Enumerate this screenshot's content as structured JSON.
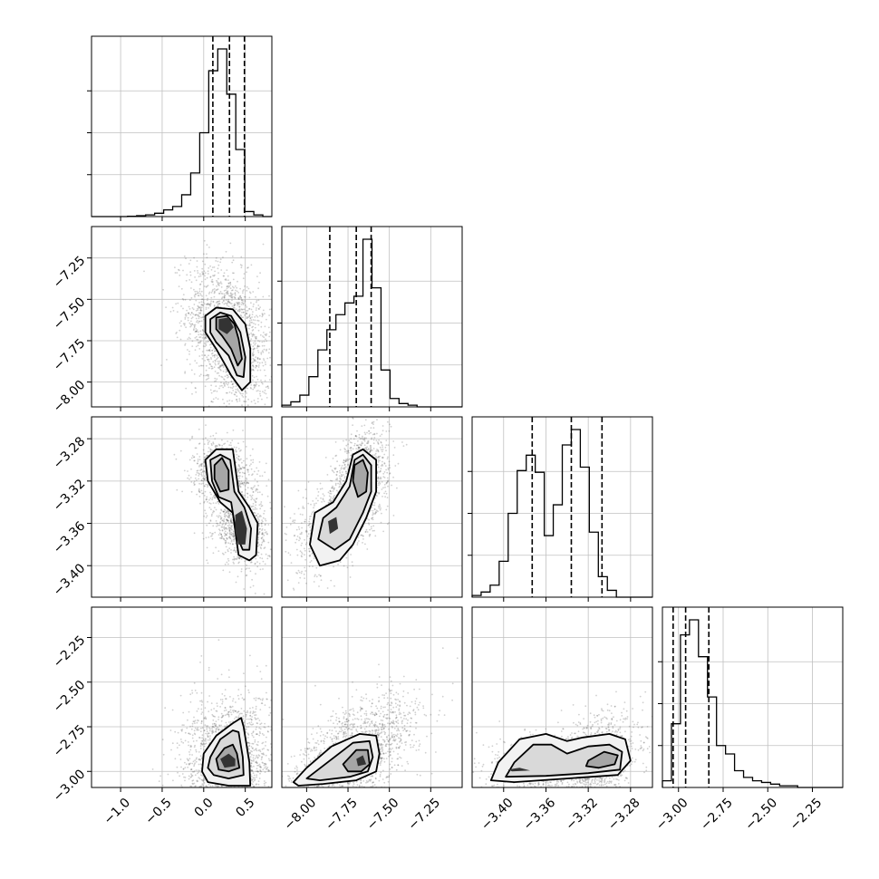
{
  "chart_data": {
    "type": "corner",
    "colors": {
      "axes": "#000000",
      "grid": "#c0c0c0",
      "points": "#555555",
      "contour": "#000000"
    },
    "parameters": [
      {
        "tick_values": [
          -1.0,
          -0.5,
          0.0,
          0.5
        ],
        "tick_labels": [
          "−1.0",
          "−0.5",
          "0.0",
          "0.5"
        ],
        "range": [
          -1.35,
          0.82
        ],
        "quantiles": [
          0.11,
          0.31,
          0.49
        ],
        "center": 0.31,
        "hist": [
          0,
          0,
          0,
          0,
          0.002,
          0.005,
          0.01,
          0.02,
          0.04,
          0.06,
          0.13,
          0.26,
          0.5,
          0.87,
          1.0,
          0.73,
          0.4,
          0.03,
          0.01,
          0
        ]
      },
      {
        "tick_values": [
          -8.0,
          -7.75,
          -7.5,
          -7.25
        ],
        "tick_labels": [
          "−8.00",
          "−7.75",
          "−7.50",
          "−7.25"
        ],
        "range": [
          -8.15,
          -7.06
        ],
        "quantiles": [
          -7.86,
          -7.7,
          -7.61
        ],
        "center": -7.66,
        "hist": [
          0.01,
          0.03,
          0.07,
          0.18,
          0.34,
          0.46,
          0.55,
          0.62,
          0.66,
          1.0,
          0.71,
          0.22,
          0.05,
          0.02,
          0.01,
          0,
          0,
          0,
          0,
          0
        ]
      },
      {
        "tick_values": [
          -3.4,
          -3.36,
          -3.32,
          -3.28
        ],
        "tick_labels": [
          "−3.40",
          "−3.36",
          "−3.32",
          "−3.28"
        ],
        "range": [
          -3.4298,
          -3.2593
        ],
        "quantiles": [
          -3.373,
          -3.336,
          -3.307
        ],
        "center": -3.34,
        "hist": [
          0.01,
          0.03,
          0.07,
          0.21,
          0.49,
          0.74,
          0.83,
          0.73,
          0.36,
          0.54,
          0.89,
          0.98,
          0.76,
          0.38,
          0.12,
          0.04,
          0,
          0,
          0,
          0
        ]
      },
      {
        "tick_values": [
          -3.0,
          -2.75,
          -2.5,
          -2.25
        ],
        "tick_labels": [
          "−3.00",
          "−2.75",
          "−2.50",
          "−2.25"
        ],
        "range": [
          -3.09,
          -2.08
        ],
        "quantiles": [
          -3.03,
          -2.96,
          -2.83
        ],
        "center": -2.94,
        "hist": [
          0.04,
          0.38,
          0.91,
          1.0,
          0.78,
          0.54,
          0.25,
          0.2,
          0.1,
          0.06,
          0.04,
          0.03,
          0.02,
          0.01,
          0.01,
          0,
          0,
          0,
          0,
          0
        ]
      }
    ],
    "pairs": [
      {
        "row": 1,
        "col": 0,
        "clusters": [
          {
            "w": 1.0,
            "m": [
              0.3,
              -7.72
            ],
            "s": [
              0.18,
              0.15
            ],
            "r": -0.35
          }
        ],
        "contours": [
          [
            [
              0.02,
              -7.6
            ],
            [
              0.15,
              -7.55
            ],
            [
              0.35,
              -7.56
            ],
            [
              0.5,
              -7.65
            ],
            [
              0.56,
              -7.8
            ],
            [
              0.56,
              -8.0
            ],
            [
              0.46,
              -8.05
            ],
            [
              0.33,
              -7.96
            ],
            [
              0.15,
              -7.8
            ],
            [
              0.02,
              -7.7
            ]
          ],
          [
            [
              0.08,
              -7.62
            ],
            [
              0.2,
              -7.58
            ],
            [
              0.33,
              -7.6
            ],
            [
              0.44,
              -7.7
            ],
            [
              0.5,
              -7.85
            ],
            [
              0.48,
              -7.97
            ],
            [
              0.4,
              -7.96
            ],
            [
              0.3,
              -7.84
            ],
            [
              0.15,
              -7.76
            ],
            [
              0.08,
              -7.7
            ]
          ],
          [
            [
              0.15,
              -7.61
            ],
            [
              0.28,
              -7.6
            ],
            [
              0.37,
              -7.65
            ],
            [
              0.42,
              -7.74
            ],
            [
              0.46,
              -7.86
            ],
            [
              0.41,
              -7.9
            ],
            [
              0.33,
              -7.8
            ],
            [
              0.22,
              -7.72
            ],
            [
              0.15,
              -7.68
            ]
          ],
          [
            [
              0.18,
              -7.62
            ],
            [
              0.3,
              -7.61
            ],
            [
              0.36,
              -7.67
            ],
            [
              0.28,
              -7.71
            ],
            [
              0.18,
              -7.68
            ]
          ]
        ]
      },
      {
        "row": 2,
        "col": 0,
        "clusters": [
          {
            "w": 0.5,
            "m": [
              0.23,
              -3.312
            ],
            "s": [
              0.13,
              0.011
            ],
            "r": -0.2
          },
          {
            "w": 0.5,
            "m": [
              0.45,
              -3.365
            ],
            "s": [
              0.12,
              0.012
            ],
            "r": -0.2
          }
        ],
        "contours": [
          [
            [
              0.02,
              -3.3
            ],
            [
              0.15,
              -3.29
            ],
            [
              0.35,
              -3.29
            ],
            [
              0.42,
              -3.33
            ],
            [
              0.55,
              -3.345
            ],
            [
              0.65,
              -3.36
            ],
            [
              0.63,
              -3.39
            ],
            [
              0.55,
              -3.395
            ],
            [
              0.42,
              -3.39
            ],
            [
              0.35,
              -3.35
            ],
            [
              0.2,
              -3.34
            ],
            [
              0.05,
              -3.32
            ]
          ],
          [
            [
              0.08,
              -3.3
            ],
            [
              0.2,
              -3.295
            ],
            [
              0.32,
              -3.3
            ],
            [
              0.37,
              -3.33
            ],
            [
              0.49,
              -3.345
            ],
            [
              0.57,
              -3.365
            ],
            [
              0.55,
              -3.385
            ],
            [
              0.47,
              -3.385
            ],
            [
              0.39,
              -3.37
            ],
            [
              0.33,
              -3.34
            ],
            [
              0.18,
              -3.335
            ],
            [
              0.1,
              -3.32
            ]
          ],
          [
            [
              0.13,
              -3.305
            ],
            [
              0.22,
              -3.298
            ],
            [
              0.3,
              -3.31
            ],
            [
              0.3,
              -3.328
            ],
            [
              0.2,
              -3.33
            ],
            [
              0.13,
              -3.318
            ]
          ],
          [
            [
              0.38,
              -3.352
            ],
            [
              0.46,
              -3.348
            ],
            [
              0.52,
              -3.365
            ],
            [
              0.5,
              -3.38
            ],
            [
              0.42,
              -3.38
            ],
            [
              0.38,
              -3.368
            ]
          ]
        ]
      },
      {
        "row": 2,
        "col": 1,
        "clusters": [
          {
            "w": 0.5,
            "m": [
              -7.67,
              -3.315
            ],
            "s": [
              0.06,
              0.016
            ],
            "r": 0.3
          },
          {
            "w": 0.5,
            "m": [
              -7.82,
              -3.357
            ],
            "s": [
              0.09,
              0.018
            ],
            "r": 0.5
          }
        ],
        "contours": [
          [
            [
              -7.98,
              -3.38
            ],
            [
              -7.95,
              -3.35
            ],
            [
              -7.84,
              -3.34
            ],
            [
              -7.76,
              -3.32
            ],
            [
              -7.72,
              -3.295
            ],
            [
              -7.66,
              -3.29
            ],
            [
              -7.58,
              -3.3
            ],
            [
              -7.58,
              -3.33
            ],
            [
              -7.64,
              -3.355
            ],
            [
              -7.72,
              -3.38
            ],
            [
              -7.8,
              -3.395
            ],
            [
              -7.92,
              -3.4
            ]
          ],
          [
            [
              -7.93,
              -3.375
            ],
            [
              -7.9,
              -3.355
            ],
            [
              -7.82,
              -3.345
            ],
            [
              -7.74,
              -3.325
            ],
            [
              -7.71,
              -3.3
            ],
            [
              -7.66,
              -3.295
            ],
            [
              -7.61,
              -3.305
            ],
            [
              -7.61,
              -3.33
            ],
            [
              -7.66,
              -3.35
            ],
            [
              -7.74,
              -3.375
            ],
            [
              -7.83,
              -3.385
            ]
          ],
          [
            [
              -7.71,
              -3.305
            ],
            [
              -7.66,
              -3.3
            ],
            [
              -7.63,
              -3.312
            ],
            [
              -7.64,
              -3.33
            ],
            [
              -7.69,
              -3.335
            ],
            [
              -7.72,
              -3.32
            ]
          ],
          [
            [
              -7.87,
              -3.358
            ],
            [
              -7.82,
              -3.354
            ],
            [
              -7.81,
              -3.365
            ],
            [
              -7.86,
              -3.37
            ]
          ]
        ]
      },
      {
        "row": 3,
        "col": 0,
        "clusters": [
          {
            "w": 1.0,
            "m": [
              0.3,
              -2.94
            ],
            "s": [
              0.2,
              0.13
            ],
            "r": 0.1
          }
        ],
        "contours": [
          [
            [
              0.0,
              -2.9
            ],
            [
              0.15,
              -2.8
            ],
            [
              0.35,
              -2.73
            ],
            [
              0.45,
              -2.7
            ],
            [
              0.48,
              -2.75
            ],
            [
              0.55,
              -2.95
            ],
            [
              0.56,
              -3.08
            ],
            [
              0.3,
              -3.08
            ],
            [
              0.05,
              -3.06
            ],
            [
              -0.02,
              -3.0
            ]
          ],
          [
            [
              0.08,
              -2.92
            ],
            [
              0.2,
              -2.82
            ],
            [
              0.35,
              -2.77
            ],
            [
              0.42,
              -2.78
            ],
            [
              0.47,
              -2.92
            ],
            [
              0.48,
              -3.02
            ],
            [
              0.3,
              -3.04
            ],
            [
              0.12,
              -3.02
            ],
            [
              0.05,
              -2.98
            ]
          ],
          [
            [
              0.15,
              -2.93
            ],
            [
              0.25,
              -2.87
            ],
            [
              0.35,
              -2.85
            ],
            [
              0.4,
              -2.9
            ],
            [
              0.43,
              -2.98
            ],
            [
              0.3,
              -3.0
            ],
            [
              0.18,
              -2.99
            ]
          ],
          [
            [
              0.2,
              -2.93
            ],
            [
              0.3,
              -2.9
            ],
            [
              0.38,
              -2.93
            ],
            [
              0.38,
              -2.97
            ],
            [
              0.25,
              -2.98
            ]
          ]
        ]
      },
      {
        "row": 3,
        "col": 1,
        "clusters": [
          {
            "w": 1.0,
            "m": [
              -7.72,
              -2.92
            ],
            "s": [
              0.14,
              0.12
            ],
            "r": 0.6
          }
        ],
        "contours": [
          [
            [
              -8.08,
              -3.06
            ],
            [
              -8.0,
              -2.98
            ],
            [
              -7.85,
              -2.86
            ],
            [
              -7.68,
              -2.79
            ],
            [
              -7.58,
              -2.8
            ],
            [
              -7.56,
              -2.9
            ],
            [
              -7.58,
              -3.0
            ],
            [
              -7.7,
              -3.05
            ],
            [
              -7.9,
              -3.07
            ],
            [
              -8.05,
              -3.08
            ]
          ],
          [
            [
              -8.0,
              -3.04
            ],
            [
              -7.86,
              -2.94
            ],
            [
              -7.72,
              -2.84
            ],
            [
              -7.62,
              -2.83
            ],
            [
              -7.6,
              -2.92
            ],
            [
              -7.63,
              -3.0
            ],
            [
              -7.74,
              -3.03
            ],
            [
              -7.92,
              -3.05
            ]
          ],
          [
            [
              -7.78,
              -2.96
            ],
            [
              -7.7,
              -2.88
            ],
            [
              -7.63,
              -2.88
            ],
            [
              -7.62,
              -2.96
            ],
            [
              -7.67,
              -3.0
            ],
            [
              -7.75,
              -3.0
            ]
          ],
          [
            [
              -7.7,
              -2.93
            ],
            [
              -7.66,
              -2.91
            ],
            [
              -7.64,
              -2.96
            ],
            [
              -7.69,
              -2.97
            ]
          ]
        ]
      },
      {
        "row": 3,
        "col": 2,
        "clusters": [
          {
            "w": 0.45,
            "m": [
              -3.365,
              -2.99
            ],
            "s": [
              0.018,
              0.07
            ],
            "r": 0.1
          },
          {
            "w": 0.55,
            "m": [
              -3.31,
              -2.93
            ],
            "s": [
              0.013,
              0.09
            ],
            "r": 0.3
          }
        ],
        "contours": [
          [
            [
              -3.412,
              -3.05
            ],
            [
              -3.405,
              -2.95
            ],
            [
              -3.385,
              -2.82
            ],
            [
              -3.36,
              -2.79
            ],
            [
              -3.34,
              -2.83
            ],
            [
              -3.325,
              -2.81
            ],
            [
              -3.3,
              -2.79
            ],
            [
              -3.285,
              -2.82
            ],
            [
              -3.28,
              -2.94
            ],
            [
              -3.292,
              -3.02
            ],
            [
              -3.34,
              -3.04
            ],
            [
              -3.39,
              -3.06
            ]
          ],
          [
            [
              -3.398,
              -3.03
            ],
            [
              -3.39,
              -2.95
            ],
            [
              -3.372,
              -2.85
            ],
            [
              -3.355,
              -2.85
            ],
            [
              -3.34,
              -2.9
            ],
            [
              -3.32,
              -2.86
            ],
            [
              -3.3,
              -2.85
            ],
            [
              -3.288,
              -2.89
            ],
            [
              -3.29,
              -2.99
            ],
            [
              -3.32,
              -3.01
            ],
            [
              -3.36,
              -3.025
            ]
          ],
          [
            [
              -3.32,
              -2.94
            ],
            [
              -3.305,
              -2.89
            ],
            [
              -3.292,
              -2.91
            ],
            [
              -3.295,
              -2.96
            ],
            [
              -3.31,
              -2.98
            ],
            [
              -3.322,
              -2.97
            ]
          ],
          [
            [
              -3.396,
              -2.99
            ],
            [
              -3.385,
              -2.98
            ],
            [
              -3.375,
              -2.995
            ],
            [
              -3.392,
              -3.0
            ]
          ]
        ]
      }
    ]
  }
}
